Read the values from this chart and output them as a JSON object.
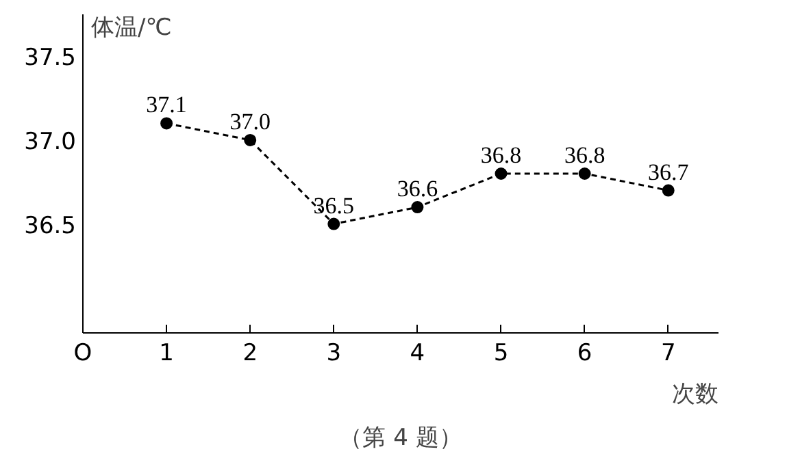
{
  "chart_data": {
    "type": "line",
    "ylabel": "体温/℃",
    "xlabel": "次数",
    "annotations": [
      "（第 4 题）"
    ],
    "x": [
      1,
      2,
      3,
      4,
      5,
      6,
      7
    ],
    "series": [
      {
        "color": "#000000",
        "values": [
          37.1,
          37.0,
          36.5,
          36.6,
          36.8,
          36.8,
          36.7
        ]
      }
    ],
    "xlim": [
      0,
      7.6
    ],
    "ylim": [
      35.85,
      37.75
    ],
    "xticks": [
      {
        "value": 0,
        "label": "O"
      },
      1,
      2,
      3,
      4,
      5,
      6,
      7
    ],
    "yticks": [
      {
        "value": 36.5,
        "label": "36.5"
      },
      {
        "value": 37.0,
        "label": "37.0"
      },
      {
        "value": 37.5,
        "label": "37.5"
      }
    ],
    "value_labels": [
      "37.1",
      "37.0",
      "36.5",
      "36.6",
      "36.8",
      "36.8",
      "36.7"
    ],
    "marker": "circle",
    "line_style": "dashed",
    "grid": false
  }
}
